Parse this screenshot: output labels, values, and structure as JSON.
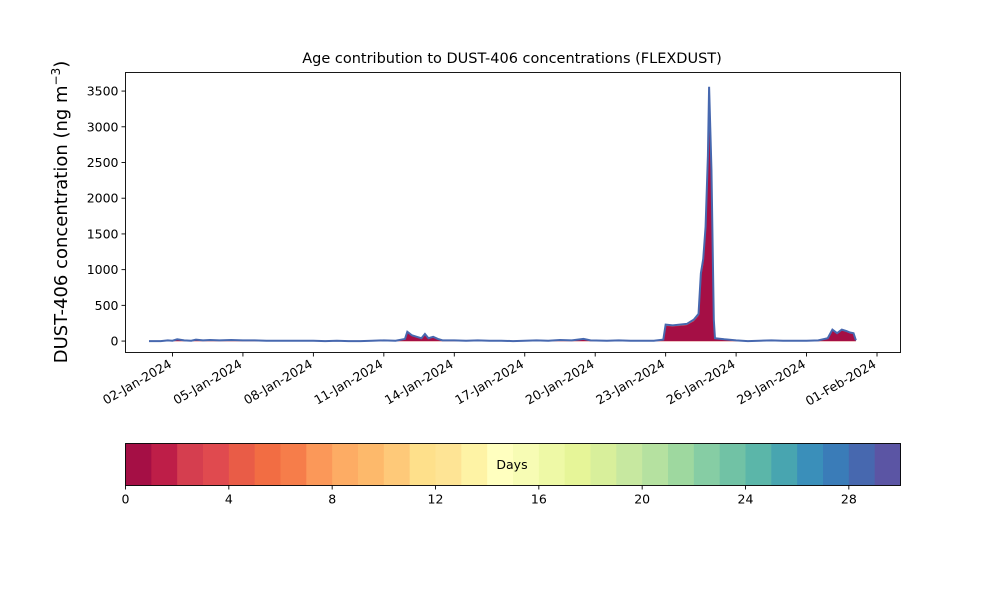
{
  "chart_data": {
    "type": "area",
    "title": "Age contribution to DUST-406 concentrations (FLEXDUST)",
    "xlabel": "",
    "ylabel": "DUST-406 concentration (ng m",
    "ylabel_sup": "−3",
    "ylabel_close": ")",
    "x_start": "2024-01-01",
    "x_end": "2024-02-01",
    "xlim": [
      "2023-12-31",
      "2024-02-02"
    ],
    "ylim": [
      -160,
      3760
    ],
    "x_tick_labels": [
      "02-Jan-2024",
      "05-Jan-2024",
      "08-Jan-2024",
      "11-Jan-2024",
      "14-Jan-2024",
      "17-Jan-2024",
      "20-Jan-2024",
      "23-Jan-2024",
      "26-Jan-2024",
      "29-Jan-2024",
      "01-Feb-2024"
    ],
    "x_ticks": [
      "2024-01-02",
      "2024-01-05",
      "2024-01-08",
      "2024-01-11",
      "2024-01-14",
      "2024-01-17",
      "2024-01-20",
      "2024-01-23",
      "2024-01-26",
      "2024-01-29",
      "2024-02-01"
    ],
    "y_ticks": [
      0,
      500,
      1000,
      1500,
      2000,
      2500,
      3000,
      3500
    ],
    "grid": false,
    "series": [
      {
        "values_ng_m3": [
          [
            0.0,
            0
          ],
          [
            0.5,
            0
          ],
          [
            0.8,
            10
          ],
          [
            1.0,
            5
          ],
          [
            1.2,
            25
          ],
          [
            1.5,
            10
          ],
          [
            1.8,
            5
          ],
          [
            2.0,
            20
          ],
          [
            2.3,
            10
          ],
          [
            2.6,
            15
          ],
          [
            3.0,
            10
          ],
          [
            3.5,
            15
          ],
          [
            4.0,
            10
          ],
          [
            4.5,
            10
          ],
          [
            5.0,
            5
          ],
          [
            5.5,
            5
          ],
          [
            6.0,
            5
          ],
          [
            6.5,
            5
          ],
          [
            7.0,
            5
          ],
          [
            7.5,
            0
          ],
          [
            8.0,
            5
          ],
          [
            8.5,
            0
          ],
          [
            9.0,
            0
          ],
          [
            9.5,
            5
          ],
          [
            10.0,
            10
          ],
          [
            10.5,
            5
          ],
          [
            10.9,
            30
          ],
          [
            11.0,
            130
          ],
          [
            11.2,
            80
          ],
          [
            11.4,
            60
          ],
          [
            11.6,
            40
          ],
          [
            11.75,
            100
          ],
          [
            11.9,
            40
          ],
          [
            12.1,
            60
          ],
          [
            12.3,
            30
          ],
          [
            12.5,
            10
          ],
          [
            13.0,
            10
          ],
          [
            13.5,
            5
          ],
          [
            14.0,
            10
          ],
          [
            14.5,
            5
          ],
          [
            15.0,
            5
          ],
          [
            15.5,
            0
          ],
          [
            16.0,
            5
          ],
          [
            16.5,
            10
          ],
          [
            17.0,
            5
          ],
          [
            17.5,
            15
          ],
          [
            18.0,
            10
          ],
          [
            18.5,
            30
          ],
          [
            18.8,
            10
          ],
          [
            19.5,
            5
          ],
          [
            20.0,
            10
          ],
          [
            20.5,
            5
          ],
          [
            21.0,
            5
          ],
          [
            21.5,
            5
          ],
          [
            21.9,
            20
          ],
          [
            22.0,
            230
          ],
          [
            22.3,
            220
          ],
          [
            22.6,
            230
          ],
          [
            22.9,
            240
          ],
          [
            23.2,
            300
          ],
          [
            23.4,
            380
          ],
          [
            23.5,
            950
          ],
          [
            23.6,
            1150
          ],
          [
            23.7,
            1600
          ],
          [
            23.8,
            2600
          ],
          [
            23.85,
            3560
          ],
          [
            23.95,
            2400
          ],
          [
            24.05,
            300
          ],
          [
            24.1,
            40
          ],
          [
            24.5,
            25
          ],
          [
            25.0,
            10
          ],
          [
            25.5,
            0
          ],
          [
            26.0,
            5
          ],
          [
            26.5,
            10
          ],
          [
            27.0,
            5
          ],
          [
            27.5,
            5
          ],
          [
            28.0,
            5
          ],
          [
            28.5,
            10
          ],
          [
            28.9,
            40
          ],
          [
            29.1,
            160
          ],
          [
            29.3,
            110
          ],
          [
            29.5,
            160
          ],
          [
            29.7,
            140
          ],
          [
            29.85,
            120
          ],
          [
            30.0,
            110
          ],
          [
            30.1,
            10
          ]
        ]
      }
    ],
    "colorbar": {
      "label": "Days",
      "min": 0,
      "max": 30,
      "tick_values": [
        0,
        4,
        8,
        12,
        16,
        20,
        24,
        28
      ],
      "tick_labels": [
        "0",
        "4",
        "8",
        "12",
        "16",
        "20",
        "24",
        "28"
      ],
      "colors": [
        "#a50f45",
        "#be1e48",
        "#d53e4f",
        "#e04a4f",
        "#e95c47",
        "#f26d43",
        "#f67d4a",
        "#fb9859",
        "#fdac64",
        "#fdb96b",
        "#fec979",
        "#fee08b",
        "#fee495",
        "#fef3a5",
        "#ffffbf",
        "#f7fcb4",
        "#eef9a6",
        "#e6f598",
        "#d8ef9b",
        "#c7e8a0",
        "#b5e1a0",
        "#9ed89f",
        "#86cda4",
        "#71c2a5",
        "#5bb6a9",
        "#48a5b0",
        "#3a8fba",
        "#3a7cb8",
        "#4768af",
        "#5b55a4"
      ]
    }
  }
}
